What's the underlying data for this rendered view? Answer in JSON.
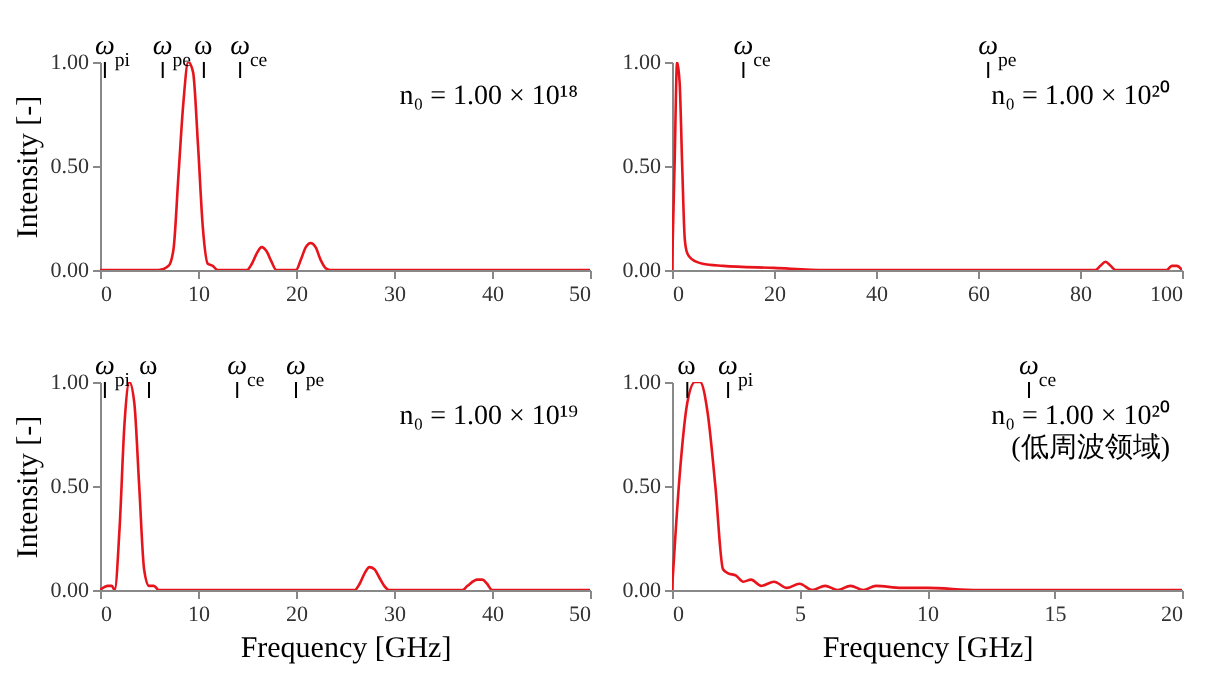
{
  "chart_data": [
    {
      "type": "line",
      "color": "#e8141c",
      "ylabel": "Intensity [-]",
      "x": [
        0,
        6,
        7,
        7.5,
        8,
        8.5,
        9,
        9.5,
        10,
        10.5,
        11,
        11.5,
        12,
        15,
        15.5,
        16,
        16.5,
        17,
        17.5,
        18,
        20,
        20.5,
        21,
        21.5,
        22,
        22.5,
        23,
        23.5,
        50
      ],
      "values": [
        0,
        0,
        0.02,
        0.1,
        0.45,
        0.8,
        1.0,
        0.95,
        0.6,
        0.2,
        0.03,
        0.02,
        0,
        0,
        0.03,
        0.08,
        0.11,
        0.09,
        0.04,
        0,
        0,
        0.05,
        0.11,
        0.13,
        0.11,
        0.05,
        0.01,
        0,
        0
      ],
      "xlim": [
        0,
        50
      ],
      "xticks": [
        0,
        10,
        20,
        30,
        40,
        50
      ],
      "ylim": [
        0,
        1
      ],
      "yticks": [
        {
          "value": 0,
          "label": "0.00"
        },
        {
          "value": 0.5,
          "label": "0.50"
        },
        {
          "value": 1,
          "label": "1.00"
        }
      ],
      "ref_lines": [
        {
          "axis": "x",
          "value": 0.5,
          "label": "ω$_{pi}$"
        },
        {
          "axis": "x",
          "value": 6.4,
          "label": "ω$_{pe}$"
        },
        {
          "axis": "x",
          "value": 10.6,
          "label": "ω"
        },
        {
          "axis": "x",
          "value": 14.3,
          "label": "ω$_{ce}$"
        }
      ],
      "annotations": [
        "n₀ = 1.00 × 10¹⁸"
      ]
    },
    {
      "type": "line",
      "color": "#e8141c",
      "x": [
        0,
        0.5,
        1,
        1.5,
        2,
        2.5,
        3,
        4,
        6,
        10,
        20,
        30,
        83,
        84,
        85,
        86,
        87,
        97,
        98,
        99,
        100
      ],
      "values": [
        0,
        0.5,
        1.0,
        0.9,
        0.5,
        0.15,
        0.08,
        0.05,
        0.03,
        0.02,
        0.01,
        0,
        0,
        0.02,
        0.04,
        0.02,
        0,
        0,
        0.02,
        0.02,
        0
      ],
      "xlim": [
        0,
        100
      ],
      "xticks": [
        0,
        20,
        40,
        60,
        80,
        100
      ],
      "ylim": [
        0,
        1
      ],
      "yticks": [
        {
          "value": 0,
          "label": "0.00"
        },
        {
          "value": 0.5,
          "label": "0.50"
        },
        {
          "value": 1,
          "label": "1.00"
        }
      ],
      "ref_lines": [
        {
          "axis": "x",
          "value": 14,
          "label": "ω$_{ce}$"
        },
        {
          "axis": "x",
          "value": 62,
          "label": "ω$_{pe}$"
        }
      ],
      "annotations": [
        "n₀ = 1.00 × 10²⁰"
      ]
    },
    {
      "type": "line",
      "color": "#e8141c",
      "ylabel": "Intensity [-]",
      "xlabel": "Frequency [GHz]",
      "x": [
        0,
        0.8,
        1.2,
        1.5,
        2,
        2.5,
        3,
        3.5,
        4,
        4.5,
        5,
        5.5,
        6,
        26,
        26.5,
        27,
        27.5,
        28,
        28.5,
        29,
        29.5,
        37,
        37.5,
        38.5,
        39,
        39.5,
        40,
        50
      ],
      "values": [
        0,
        0.02,
        0.02,
        0,
        0.3,
        0.8,
        1.0,
        0.9,
        0.5,
        0.1,
        0.02,
        0.02,
        0,
        0,
        0.03,
        0.08,
        0.11,
        0.1,
        0.06,
        0.02,
        0,
        0,
        0.02,
        0.05,
        0.05,
        0.03,
        0,
        0
      ],
      "xlim": [
        0,
        50
      ],
      "xticks": [
        0,
        10,
        20,
        30,
        40,
        50
      ],
      "ylim": [
        0,
        1
      ],
      "yticks": [
        {
          "value": 0,
          "label": "0.00"
        },
        {
          "value": 0.5,
          "label": "0.50"
        },
        {
          "value": 1,
          "label": "1.00"
        }
      ],
      "ref_lines": [
        {
          "axis": "x",
          "value": 0.5,
          "label": "ω$_{pi}$"
        },
        {
          "axis": "x",
          "value": 5,
          "label": "ω"
        },
        {
          "axis": "x",
          "value": 14,
          "label": "ω$_{ce}$"
        },
        {
          "axis": "x",
          "value": 20,
          "label": "ω$_{pe}$"
        }
      ],
      "annotations": [
        "n₀ = 1.00 × 10¹⁹"
      ]
    },
    {
      "type": "line",
      "color": "#e8141c",
      "xlabel": "Frequency [GHz]",
      "x": [
        0,
        0.3,
        0.6,
        0.9,
        1.1,
        1.4,
        1.7,
        2,
        2.2,
        2.5,
        2.8,
        3.1,
        3.5,
        4,
        4.5,
        5,
        5.5,
        6,
        6.5,
        7,
        7.5,
        8,
        9,
        10,
        12,
        15,
        20
      ],
      "values": [
        0,
        0.55,
        0.9,
        1.0,
        1.0,
        0.85,
        0.5,
        0.1,
        0.08,
        0.07,
        0.04,
        0.05,
        0.02,
        0.04,
        0.01,
        0.03,
        0,
        0.02,
        0,
        0.02,
        0,
        0.02,
        0.01,
        0.01,
        0,
        0,
        0
      ],
      "xlim": [
        0,
        20
      ],
      "xticks": [
        0,
        5,
        10,
        15,
        20
      ],
      "ylim": [
        0,
        1
      ],
      "yticks": [
        {
          "value": 0,
          "label": "0.00"
        },
        {
          "value": 0.5,
          "label": "0.50"
        },
        {
          "value": 1,
          "label": "1.00"
        }
      ],
      "ref_lines": [
        {
          "axis": "x",
          "value": 0.6,
          "label": "ω"
        },
        {
          "axis": "x",
          "value": 2.2,
          "label": "ω$_{pi}$"
        },
        {
          "axis": "x",
          "value": 14,
          "label": "ω$_{ce}$"
        }
      ],
      "annotations": [
        "n₀ = 1.00 × 10²⁰",
        "(低周波领域)"
      ]
    }
  ]
}
